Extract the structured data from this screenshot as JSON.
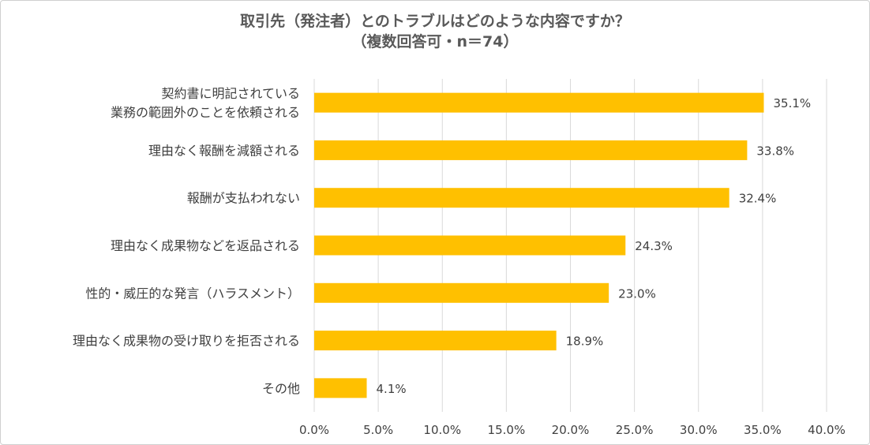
{
  "chart_data": {
    "type": "bar",
    "orientation": "horizontal",
    "title": [
      "取引先（発注者）とのトラブルはどのような内容ですか？",
      "（複数回答可・n＝74）"
    ],
    "categories": [
      [
        "契約書に明記されている",
        "業務の範囲外のことを依頼される"
      ],
      [
        "理由なく報酬を減額される"
      ],
      [
        "報酬が支払われない"
      ],
      [
        "理由なく成果物などを返品される"
      ],
      [
        "性的・威圧的な発言（ハラスメント）"
      ],
      [
        "理由なく成果物の受け取りを拒否される"
      ],
      [
        "その他"
      ]
    ],
    "values": [
      35.1,
      33.8,
      32.4,
      24.3,
      23.0,
      18.9,
      4.1
    ],
    "value_labels": [
      "35.1%",
      "33.8%",
      "32.4%",
      "24.3%",
      "23.0%",
      "18.9%",
      "4.1%"
    ],
    "xlim": [
      0,
      40
    ],
    "ticks": [
      "0.0%",
      "5.0%",
      "10.0%",
      "15.0%",
      "20.0%",
      "25.0%",
      "30.0%",
      "35.0%",
      "40.0%"
    ],
    "grid": true,
    "colors": {
      "bar": "#FFC000",
      "grid": "#d9d9d9",
      "text": "#404040"
    }
  }
}
